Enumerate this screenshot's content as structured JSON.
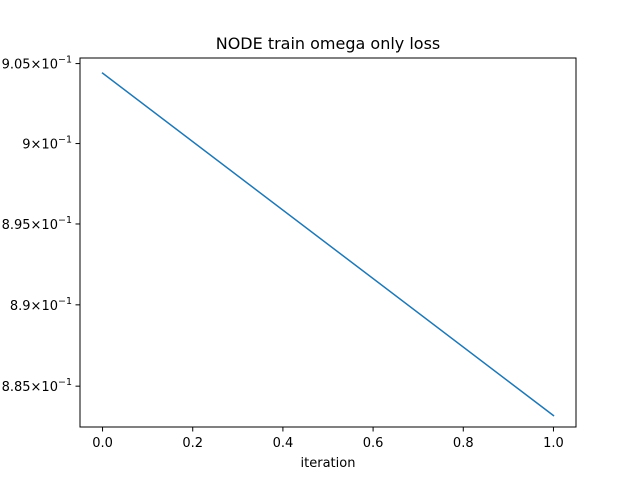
{
  "chart_data": {
    "type": "line",
    "title": "NODE train omega only loss",
    "xlabel": "iteration",
    "ylabel": "",
    "x": [
      0.0,
      1.0
    ],
    "series": [
      {
        "values": [
          0.9044,
          0.8832
        ],
        "color": "#1f77b4"
      }
    ],
    "xlim": [
      -0.05,
      1.05
    ],
    "ylim": [
      0.8825,
      0.90535
    ],
    "yscale": "log",
    "grid": false,
    "xticks": [
      {
        "value": 0.0,
        "label": "0.0"
      },
      {
        "value": 0.2,
        "label": "0.2"
      },
      {
        "value": 0.4,
        "label": "0.4"
      },
      {
        "value": 0.6,
        "label": "0.6"
      },
      {
        "value": 0.8,
        "label": "0.8"
      },
      {
        "value": 1.0,
        "label": "1.0"
      }
    ],
    "yticks": [
      {
        "value": 0.905,
        "mantissa": "9.05",
        "times": "×",
        "base": "10",
        "exp": "−1"
      },
      {
        "value": 0.9,
        "mantissa": "9",
        "times": "×",
        "base": "10",
        "exp": "−1"
      },
      {
        "value": 0.895,
        "mantissa": "8.95",
        "times": "×",
        "base": "10",
        "exp": "−1"
      },
      {
        "value": 0.89,
        "mantissa": "8.9",
        "times": "×",
        "base": "10",
        "exp": "−1"
      },
      {
        "value": 0.885,
        "mantissa": "8.85",
        "times": "×",
        "base": "10",
        "exp": "−1"
      }
    ]
  }
}
